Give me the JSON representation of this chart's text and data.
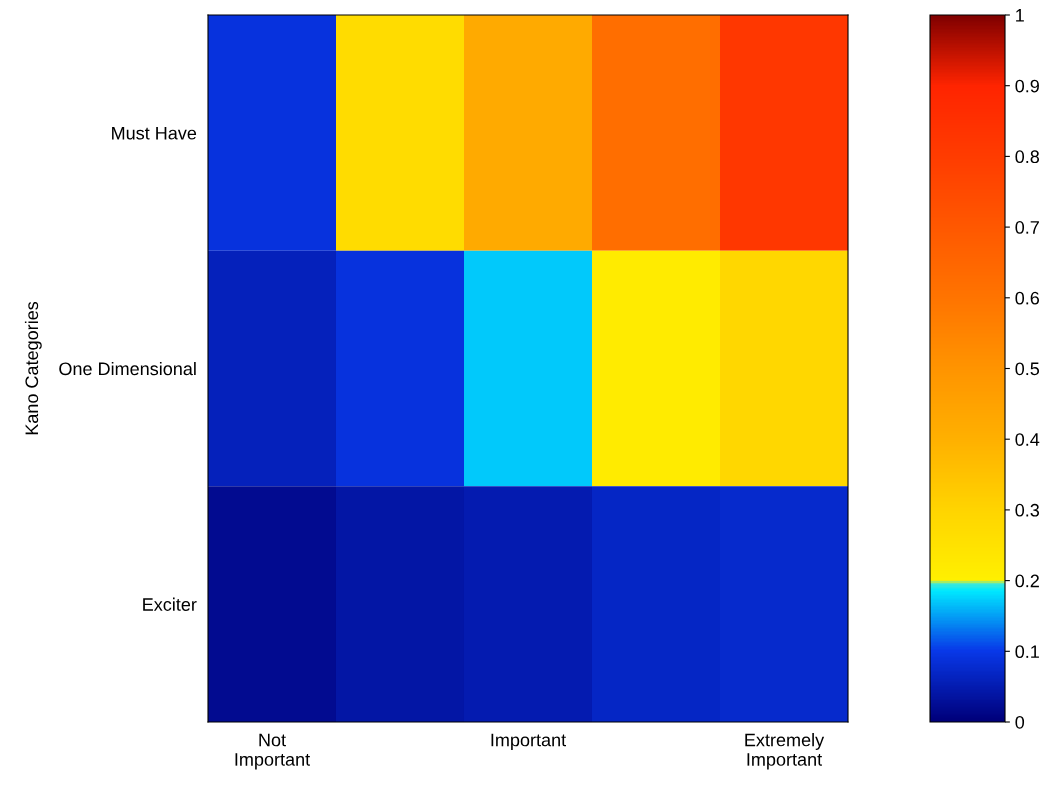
{
  "chart_data": {
    "type": "heatmap",
    "ylabel": "Kano Categories",
    "categories": [
      "Not\nImportant",
      null,
      "Important",
      null,
      "Extremely\nImportant"
    ],
    "y_categories": [
      "Must Have",
      "One Dimensional",
      "Exciter"
    ],
    "cells": [
      [
        0.09,
        0.27,
        0.42,
        0.62,
        0.82
      ],
      [
        0.06,
        0.09,
        0.17,
        0.22,
        0.29
      ],
      [
        0.02,
        0.04,
        0.05,
        0.07,
        0.075
      ]
    ],
    "clim": [
      0,
      1
    ],
    "cticks": [
      0,
      0.1,
      0.2,
      0.3,
      0.4,
      0.5,
      0.6,
      0.7,
      0.8,
      0.9,
      1
    ]
  }
}
